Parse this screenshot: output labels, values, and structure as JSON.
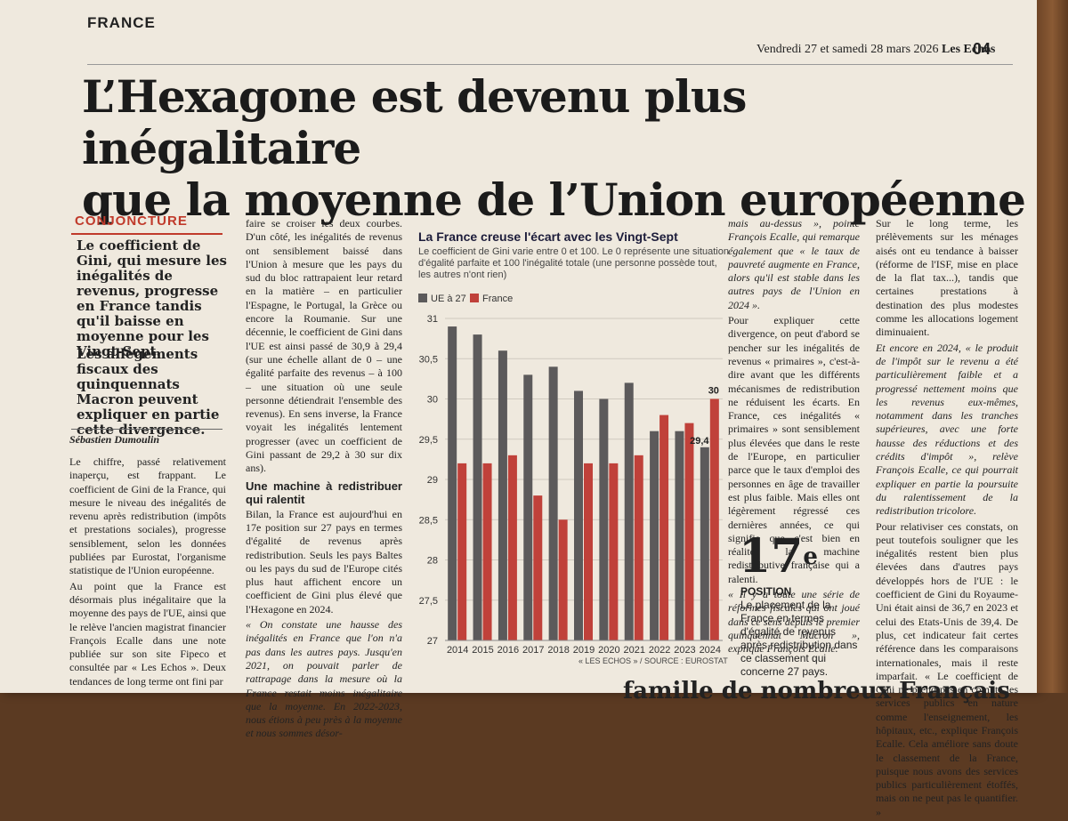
{
  "header": {
    "rubric": "FRANCE",
    "date": "Vendredi 27 et samedi 28 mars 2026",
    "paper": "Les Echos",
    "page": "04"
  },
  "headline": {
    "line1": "L’Hexagone est devenu plus inégalitaire",
    "line2": "que la moyenne de l’Union européenne"
  },
  "intro": {
    "kicker": "CONJONCTURE",
    "chapo1": "Le coefficient de Gini, qui mesure les inégalités de revenus, progresse en France tandis qu'il baisse en moyenne pour les Vingt-Sept.",
    "chapo2": "Les allègements fiscaux des quinquennats Macron peuvent expliquer en partie cette divergence.",
    "byline": "Sébastien Dumoulin"
  },
  "col1": {
    "p1": "Le chiffre, passé relativement inaperçu, est frappant. Le coefficient de Gini de la France, qui mesure le niveau des inégalités de revenu après redistribution (impôts et prestations sociales), progresse sensiblement, selon les données publiées par Eurostat, l'organisme statistique de l'Union européenne.",
    "p2": "Au point que la France est désormais plus inégalitaire que la moyenne des pays de l'UE, ainsi que le relève l'ancien magistrat financier François Ecalle dans une note publiée sur son site Fipeco et consultée par « Les Echos ». Deux tendances de long terme ont fini par"
  },
  "col2": {
    "p1": "faire se croiser les deux courbes. D'un côté, les inégalités de revenus ont sensiblement baissé dans l'Union à mesure que les pays du sud du bloc rattrapaient leur retard en la matière – en particulier l'Espagne, le Portugal, la Grèce ou encore la Roumanie. Sur une décennie, le coefficient de Gini dans l'UE est ainsi passé de 30,9 à 29,4 (sur une échelle allant de 0 – une égalité parfaite des revenus – à 100 – une situation où une seule personne détiendrait l'ensemble des revenus). En sens inverse, la France voyait les inégalités lentement progresser (avec un coefficient de Gini passant de 29,2 à 30 sur dix ans).",
    "subhead": "Une machine à redistribuer qui ralentit",
    "p2": "Bilan, la France est aujourd'hui en 17e position sur 27 pays en termes d'égalité de revenus après redistribution. Seuls les pays Baltes ou les pays du sud de l'Europe cités plus haut affichent encore un coefficient de Gini plus élevé que l'Hexagone en 2024.",
    "p3": "« On constate une hausse des inégalités en France que l'on n'a pas dans les autres pays. Jusqu'en 2021, on pouvait parler de rattrapage dans la mesure où la France restait moins inégalitaire que la moyenne. En 2022-2023, nous étions à peu près à la moyenne et nous sommes désor-"
  },
  "col4": {
    "p1": "mais au-dessus », pointe François Ecalle, qui remarque également que « le taux de pauvreté augmente en France, alors qu'il est stable dans les autres pays de l'Union en 2024 ».",
    "p2": "Pour expliquer cette divergence, on peut d'abord se pencher sur les inégalités de revenus « primaires », c'est-à-dire avant que les différents mécanismes de redistribution ne réduisent les écarts. En France, ces inégalités « primaires » sont sensiblement plus élevées que dans le reste de l'Europe, en particulier parce que le taux d'emploi des personnes en âge de travailler est plus faible. Mais elles ont légèrement régressé ces dernières années, ce qui signifie que c'est bien en réalité la machine redistributive française qui a ralenti.",
    "p3": "« Il y a toute une série de réformes fiscales qui ont joué dans ce sens depuis le premier quinquennat Macron », explique François Ecalle."
  },
  "col5": {
    "p1": "Sur le long terme, les prélèvements sur les ménages aisés ont eu tendance à baisser (réforme de l'ISF, mise en place de la flat tax...), tandis que certaines prestations à destination des plus modestes comme les allocations logement diminuaient.",
    "p2": "Et encore en 2024, « le produit de l'impôt sur le revenu a été particulièrement faible et a progressé nettement moins que les revenus eux-mêmes, notamment dans les tranches supérieures, avec une forte hausse des réductions et des crédits d'impôt », relève François Ecalle, ce qui pourrait expliquer en partie la poursuite du ralentissement de la redistribution tricolore.",
    "p3": "Pour relativiser ces constats, on peut toutefois souligner que les inégalités restent bien plus élevées dans d'autres pays développés hors de l'UE : le coefficient de Gini du Royaume-Uni était ainsi de 36,7 en 2023 et celui des Etats-Unis de 39,4. De plus, cet indicateur fait certes référence dans les comparaisons internationales, mais il reste imparfait. « Le coefficient de Gini ne prend pas en compte les services publics en nature comme l'enseignement, les hôpitaux, etc., explique François Ecalle. Cela améliore sans doute le classement de la France, puisque nous avons des services publics particulièrement étoffés, mais on ne peut pas le quantifier. »"
  },
  "callout": {
    "number": "17",
    "suffix": "e",
    "label": "POSITION",
    "text": "Le placement de la France en termes d'égalité de revenus après redistribution dans ce classement qui concerne 27 pays."
  },
  "chart_meta": {
    "title": "La France creuse l'écart avec les Vingt-Sept",
    "subtitle": "Le coefficient de Gini varie entre 0 et 100. Le 0 représente une situation d'égalité parfaite et 100 l'inégalité totale (une personne possède tout, les autres n'ont rien)",
    "source": "« LES ECHOS » / SOURCE : EUROSTAT"
  },
  "bottom_line": "famille de nombreux Français",
  "colors": {
    "eu": "#5c5a5b",
    "france": "#c0413a",
    "accent": "#c03a2b"
  },
  "chart_data": {
    "type": "bar",
    "categories": [
      "2014",
      "2015",
      "2016",
      "2017",
      "2018",
      "2019",
      "2020",
      "2021",
      "2022",
      "2023",
      "2024"
    ],
    "series": [
      {
        "name": "UE à 27",
        "values": [
          30.9,
          30.8,
          30.6,
          30.3,
          30.4,
          30.1,
          30.0,
          30.2,
          29.6,
          29.6,
          29.4
        ]
      },
      {
        "name": "France",
        "values": [
          29.2,
          29.2,
          29.3,
          28.8,
          28.5,
          29.2,
          29.2,
          29.3,
          29.8,
          29.7,
          30.0
        ]
      }
    ],
    "ylim": [
      27,
      31
    ],
    "yticks": [
      "27",
      "27,5",
      "28",
      "28,5",
      "29",
      "29,5",
      "30",
      "30,5",
      "31"
    ],
    "data_labels": {
      "eu_last": "29,4",
      "france_last": "30"
    },
    "legend_position": "top-left",
    "grid": true
  }
}
